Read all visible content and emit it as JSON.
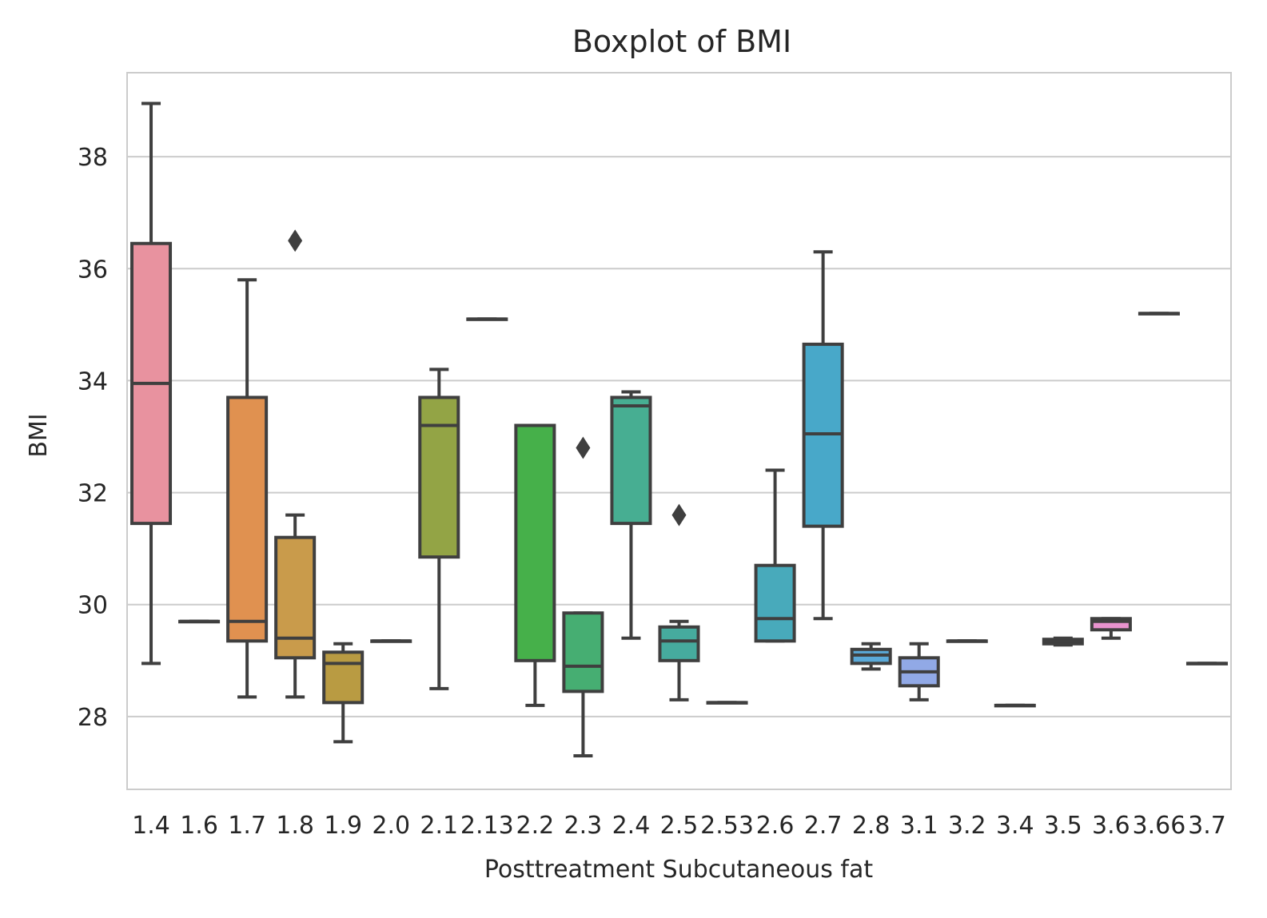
{
  "chart_data": {
    "type": "box",
    "title": "Boxplot of BMI",
    "xlabel": "Posttreatment Subcutaneous fat",
    "ylabel": "BMI",
    "ylim": [
      26.7,
      39.5
    ],
    "yticks": [
      28,
      30,
      32,
      34,
      36,
      38
    ],
    "grid": true,
    "categories": [
      "1.4",
      "1.6",
      "1.7",
      "1.8",
      "1.9",
      "2.0",
      "2.1",
      "2.13",
      "2.2",
      "2.3",
      "2.4",
      "2.5",
      "2.53",
      "2.6",
      "2.7",
      "2.8",
      "3.1",
      "3.2",
      "3.4",
      "3.5",
      "3.6",
      "3.66",
      "3.7"
    ],
    "colors": [
      "#e8929f",
      "#e09950",
      "#e09150",
      "#c99b4b",
      "#b99b42",
      "#a9a142",
      "#93a445",
      "#72b047",
      "#46b04a",
      "#46ae72",
      "#47ae92",
      "#46ab9e",
      "#47a9ab",
      "#48aabb",
      "#48a8c9",
      "#5aa9d8",
      "#91a9e6",
      "#a9a1e6",
      "#c39ae3",
      "#d893e3",
      "#e893ce",
      "#e892b8",
      "#e892a9"
    ],
    "boxes": [
      {
        "whislo": 28.95,
        "q1": 31.45,
        "med": 33.95,
        "q3": 36.45,
        "whishi": 38.95,
        "fliers": []
      },
      {
        "whislo": 29.7,
        "q1": 29.7,
        "med": 29.7,
        "q3": 29.7,
        "whishi": 29.7,
        "fliers": []
      },
      {
        "whislo": 28.35,
        "q1": 29.35,
        "med": 29.7,
        "q3": 33.7,
        "whishi": 35.8,
        "fliers": []
      },
      {
        "whislo": 28.35,
        "q1": 29.05,
        "med": 29.4,
        "q3": 31.2,
        "whishi": 31.6,
        "fliers": [
          36.5
        ]
      },
      {
        "whislo": 27.55,
        "q1": 28.25,
        "med": 28.95,
        "q3": 29.15,
        "whishi": 29.3,
        "fliers": []
      },
      {
        "whislo": 29.35,
        "q1": 29.35,
        "med": 29.35,
        "q3": 29.35,
        "whishi": 29.35,
        "fliers": []
      },
      {
        "whislo": 28.5,
        "q1": 30.85,
        "med": 33.2,
        "q3": 33.7,
        "whishi": 34.2,
        "fliers": []
      },
      {
        "whislo": 35.1,
        "q1": 35.1,
        "med": 35.1,
        "q3": 35.1,
        "whishi": 35.1,
        "fliers": []
      },
      {
        "whislo": 28.2,
        "q1": 29.0,
        "med": 33.2,
        "q3": 33.2,
        "whishi": 33.2,
        "fliers": []
      },
      {
        "whislo": 27.3,
        "q1": 28.45,
        "med": 28.9,
        "q3": 29.85,
        "whishi": 29.85,
        "fliers": [
          32.8
        ]
      },
      {
        "whislo": 29.4,
        "q1": 31.45,
        "med": 33.55,
        "q3": 33.7,
        "whishi": 33.8,
        "fliers": []
      },
      {
        "whislo": 28.3,
        "q1": 29.0,
        "med": 29.35,
        "q3": 29.6,
        "whishi": 29.7,
        "fliers": [
          31.6
        ]
      },
      {
        "whislo": 28.25,
        "q1": 28.25,
        "med": 28.25,
        "q3": 28.25,
        "whishi": 28.25,
        "fliers": []
      },
      {
        "whislo": 29.35,
        "q1": 29.35,
        "med": 29.75,
        "q3": 30.7,
        "whishi": 32.4,
        "fliers": []
      },
      {
        "whislo": 29.75,
        "q1": 31.4,
        "med": 33.05,
        "q3": 34.65,
        "whishi": 36.3,
        "fliers": []
      },
      {
        "whislo": 28.85,
        "q1": 28.95,
        "med": 29.1,
        "q3": 29.2,
        "whishi": 29.3,
        "fliers": []
      },
      {
        "whislo": 28.3,
        "q1": 28.55,
        "med": 28.8,
        "q3": 29.05,
        "whishi": 29.3,
        "fliers": []
      },
      {
        "whislo": 29.35,
        "q1": 29.35,
        "med": 29.35,
        "q3": 29.35,
        "whishi": 29.35,
        "fliers": []
      },
      {
        "whislo": 28.2,
        "q1": 28.2,
        "med": 28.2,
        "q3": 28.2,
        "whishi": 28.2,
        "fliers": []
      },
      {
        "whislo": 29.28,
        "q1": 29.3,
        "med": 29.35,
        "q3": 29.38,
        "whishi": 29.4,
        "fliers": []
      },
      {
        "whislo": 29.4,
        "q1": 29.55,
        "med": 29.7,
        "q3": 29.75,
        "whishi": 29.75,
        "fliers": []
      },
      {
        "whislo": 35.2,
        "q1": 35.2,
        "med": 35.2,
        "q3": 35.2,
        "whishi": 35.2,
        "fliers": []
      },
      {
        "whislo": 28.95,
        "q1": 28.95,
        "med": 28.95,
        "q3": 28.95,
        "whishi": 28.95,
        "fliers": []
      }
    ]
  }
}
